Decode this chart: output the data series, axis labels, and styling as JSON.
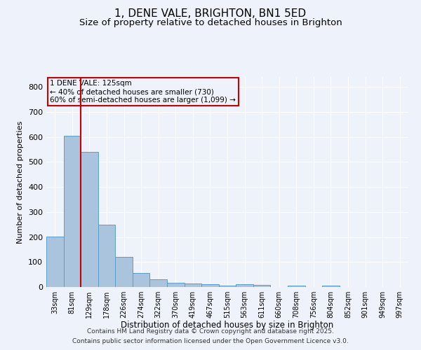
{
  "title": "1, DENE VALE, BRIGHTON, BN1 5ED",
  "subtitle": "Size of property relative to detached houses in Brighton",
  "xlabel": "Distribution of detached houses by size in Brighton",
  "ylabel": "Number of detached properties",
  "bar_labels": [
    "33sqm",
    "81sqm",
    "129sqm",
    "178sqm",
    "226sqm",
    "274sqm",
    "322sqm",
    "370sqm",
    "419sqm",
    "467sqm",
    "515sqm",
    "563sqm",
    "611sqm",
    "660sqm",
    "708sqm",
    "756sqm",
    "804sqm",
    "852sqm",
    "901sqm",
    "949sqm",
    "997sqm"
  ],
  "bar_values": [
    203,
    605,
    540,
    250,
    120,
    57,
    32,
    16,
    13,
    10,
    5,
    10,
    8,
    0,
    6,
    0,
    5,
    0,
    0,
    0,
    0
  ],
  "bar_color": "#aac4de",
  "bar_edge_color": "#5a9ec9",
  "property_line_color": "#cc0000",
  "annotation_title": "1 DENE VALE: 125sqm",
  "annotation_line1": "← 40% of detached houses are smaller (730)",
  "annotation_line2": "60% of semi-detached houses are larger (1,099) →",
  "annotation_box_color": "#cc0000",
  "ylim": [
    0,
    840
  ],
  "yticks": [
    0,
    100,
    200,
    300,
    400,
    500,
    600,
    700,
    800
  ],
  "bg_color": "#eef2fb",
  "grid_color": "#ffffff",
  "title_fontsize": 11,
  "subtitle_fontsize": 9.5,
  "footer_line1": "Contains HM Land Registry data © Crown copyright and database right 2025.",
  "footer_line2": "Contains public sector information licensed under the Open Government Licence v3.0."
}
